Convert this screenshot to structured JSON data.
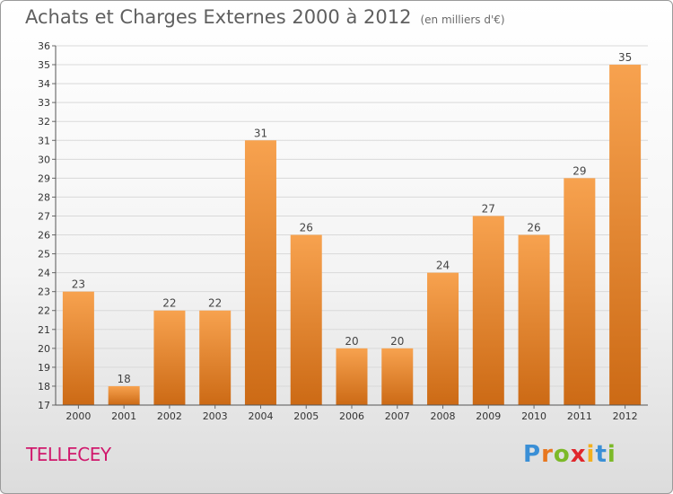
{
  "header": {
    "title": "Achats et Charges Externes 2000 à 2012",
    "subtitle": "(en milliers d'€)"
  },
  "footer": {
    "commune": "TELLECEY",
    "logo_letters": [
      "P",
      "r",
      "o",
      "x",
      "i",
      "t",
      "i"
    ],
    "logo_colors": [
      "#3a8fd6",
      "#e8771f",
      "#7cb928",
      "#e0262b",
      "#f2b01e",
      "#3a8fd6",
      "#7cb928"
    ]
  },
  "colors": {
    "bar_top": "#f7a24f",
    "bar_bottom": "#cc6a15",
    "grid": "#d9d9d9"
  },
  "chart_data": {
    "type": "bar",
    "categories": [
      "2000",
      "2001",
      "2002",
      "2003",
      "2004",
      "2005",
      "2006",
      "2007",
      "2008",
      "2009",
      "2010",
      "2011",
      "2012"
    ],
    "values": [
      23,
      18,
      22,
      22,
      31,
      26,
      20,
      20,
      24,
      27,
      26,
      29,
      35
    ],
    "ylim": [
      17,
      36
    ],
    "yticks": [
      "17",
      "18",
      "19",
      "20",
      "21",
      "22",
      "23",
      "24",
      "25",
      "26",
      "27",
      "28",
      "29",
      "30",
      "31",
      "32",
      "33",
      "34",
      "35",
      "36"
    ],
    "grid": true,
    "title": "Achats et Charges Externes 2000 à 2012",
    "subtitle": "(en milliers d'€)"
  }
}
